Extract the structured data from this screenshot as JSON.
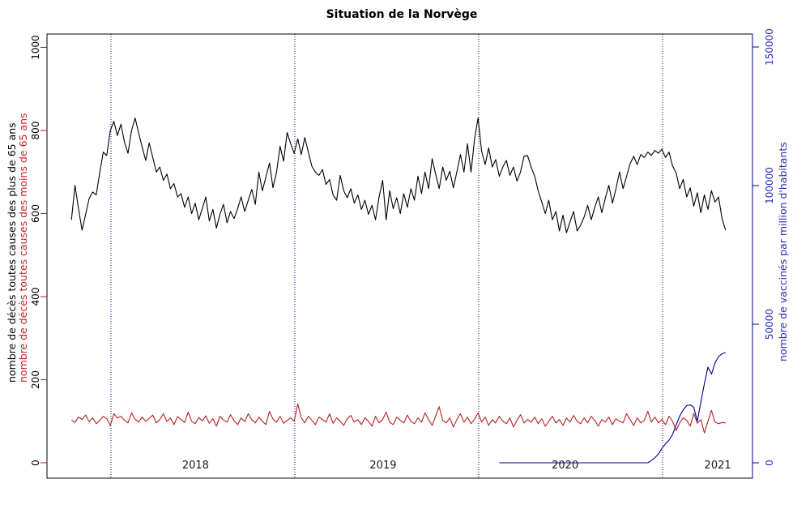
{
  "title": "Situation de la Norvège",
  "chart_data": {
    "type": "line",
    "title": "Situation de la Norvège",
    "x_axis": {
      "range_years": [
        2017.67,
        2021.49
      ],
      "labels": [
        {
          "text": "2018",
          "year": 2018.46
        },
        {
          "text": "2019",
          "year": 2019.48
        },
        {
          "text": "2020",
          "year": 2020.47
        },
        {
          "text": "2021",
          "year": 2021.3
        }
      ],
      "vlines_years": [
        2018,
        2019,
        2020,
        2021
      ],
      "vline_color": "#00008b"
    },
    "left_axis": {
      "ticks": [
        0,
        200,
        400,
        600,
        800,
        1000
      ],
      "range": [
        0,
        1000
      ],
      "tick_color": "#aa2222",
      "label_color": "#000000",
      "titles": [
        {
          "text": "nombre de décès toutes causes des plus de 65 ans",
          "color": "#000000"
        },
        {
          "text": "nombre de décès toutes causes des moins de 65 ans",
          "color": "#cc2222"
        }
      ]
    },
    "right_axis": {
      "ticks": [
        0,
        50000,
        100000,
        150000
      ],
      "range": [
        0,
        150000
      ],
      "tick_color": "#00008b",
      "label_color": "#2a2ab4",
      "title": {
        "text": "nombre de vaccinés par million d'habitants",
        "color": "#2a2ab4"
      }
    },
    "series": [
      {
        "name": "deces-plus-65-ans",
        "color": "#000000",
        "axis": "left",
        "x_start_year": 2017.785,
        "dx_year": 0.019231,
        "values": [
          585,
          668,
          612,
          560,
          598,
          636,
          652,
          645,
          698,
          748,
          740,
          800,
          822,
          788,
          815,
          772,
          745,
          800,
          830,
          795,
          760,
          728,
          770,
          735,
          700,
          712,
          680,
          695,
          660,
          672,
          640,
          648,
          615,
          640,
          600,
          625,
          585,
          612,
          640,
          582,
          610,
          565,
          598,
          622,
          578,
          605,
          588,
          612,
          640,
          605,
          632,
          658,
          622,
          700,
          655,
          688,
          722,
          662,
          700,
          762,
          726,
          795,
          768,
          745,
          780,
          742,
          783,
          748,
          714,
          700,
          692,
          706,
          670,
          682,
          645,
          632,
          692,
          655,
          638,
          660,
          625,
          645,
          610,
          632,
          598,
          620,
          585,
          640,
          680,
          585,
          655,
          612,
          638,
          600,
          648,
          615,
          660,
          632,
          690,
          648,
          700,
          660,
          732,
          695,
          660,
          712,
          680,
          702,
          662,
          700,
          742,
          700,
          768,
          700,
          780,
          830,
          750,
          718,
          758,
          712,
          730,
          690,
          712,
          728,
          692,
          712,
          678,
          700,
          738,
          740,
          712,
          690,
          655,
          628,
          600,
          632,
          585,
          605,
          558,
          596,
          554,
          580,
          605,
          558,
          572,
          592,
          620,
          585,
          615,
          640,
          602,
          638,
          668,
          625,
          660,
          700,
          660,
          690,
          720,
          738,
          718,
          742,
          735,
          748,
          740,
          752,
          745,
          755,
          735,
          748,
          715,
          698,
          660,
          682,
          640,
          662,
          618,
          650,
          602,
          645,
          610,
          655,
          628,
          640,
          588,
          560
        ]
      },
      {
        "name": "deces-moins-65-ans",
        "color": "#b22222",
        "axis": "left",
        "x_start_year": 2017.785,
        "dx_year": 0.019231,
        "values": [
          103,
          97,
          110,
          104,
          115,
          99,
          108,
          94,
          102,
          112,
          106,
          90,
          118,
          108,
          112,
          102,
          96,
          120,
          105,
          98,
          110,
          100,
          107,
          115,
          96,
          104,
          118,
          99,
          108,
          92,
          111,
          104,
          97,
          122,
          100,
          94,
          109,
          101,
          113,
          95,
          106,
          88,
          112,
          103,
          98,
          116,
          101,
          92,
          108,
          99,
          118,
          104,
          96,
          110,
          100,
          92,
          124,
          105,
          98,
          112,
          95,
          102,
          108,
          100,
          142,
          108,
          96,
          112,
          102,
          92,
          110,
          104,
          98,
          118,
          95,
          108,
          100,
          90,
          106,
          114,
          98,
          104,
          92,
          108,
          100,
          88,
          112,
          96,
          104,
          122,
          98,
          92,
          110,
          102,
          96,
          115,
          100,
          94,
          108,
          98,
          120,
          104,
          90,
          112,
          135,
          102,
          96,
          108,
          86,
          104,
          118,
          98,
          110,
          94,
          105,
          120,
          98,
          110,
          90,
          104,
          96,
          112,
          100,
          94,
          108,
          86,
          102,
          116,
          96,
          104,
          98,
          110,
          94,
          106,
          88,
          100,
          112,
          96,
          104,
          90,
          108,
          98,
          114,
          100,
          94,
          108,
          96,
          112,
          102,
          88,
          104,
          98,
          110,
          92,
          106,
          100,
          96,
          118,
          104,
          90,
          108,
          96,
          102,
          124,
          98,
          110,
          96,
          104,
          92,
          112,
          100,
          78,
          96,
          108,
          102,
          88,
          119,
          95,
          104,
          72,
          100,
          126,
          98,
          94,
          97,
          96
        ]
      },
      {
        "name": "vaccines-par-million",
        "color": "#00008b",
        "axis": "right",
        "x_start_year": 2020.112,
        "dx_year": 0.019231,
        "values": [
          0,
          0,
          0,
          0,
          0,
          0,
          0,
          0,
          0,
          0,
          0,
          0,
          0,
          0,
          0,
          0,
          0,
          0,
          0,
          0,
          0,
          0,
          0,
          0,
          0,
          0,
          0,
          0,
          0,
          0,
          0,
          0,
          0,
          0,
          0,
          0,
          0,
          0,
          0,
          0,
          0,
          0,
          0,
          800,
          1800,
          3200,
          5200,
          6800,
          8200,
          10200,
          13600,
          16800,
          19000,
          20600,
          20900,
          20000,
          15000,
          22000,
          28500,
          34500,
          32000,
          36000,
          38300,
          39300,
          39800
        ]
      }
    ]
  }
}
